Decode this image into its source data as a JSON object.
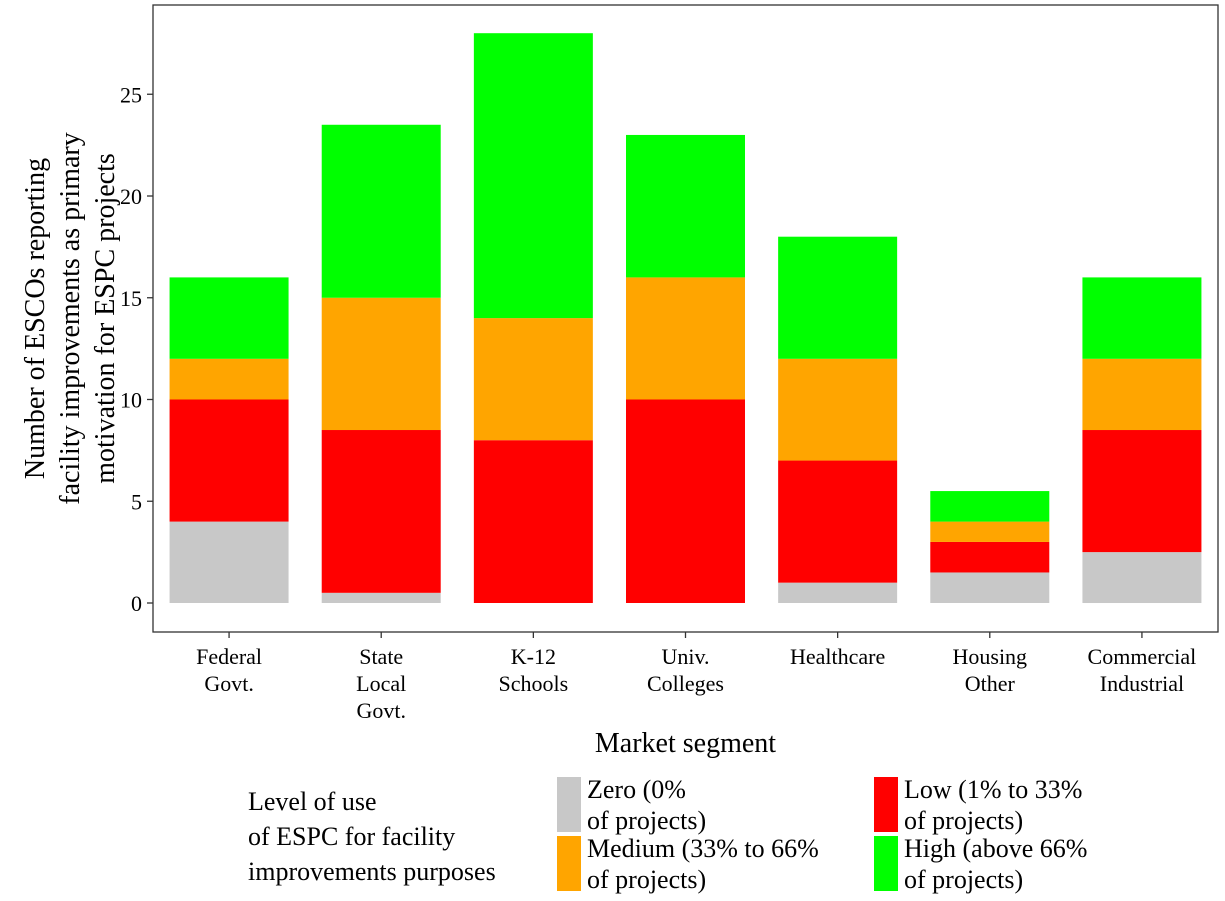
{
  "chart_data": {
    "type": "bar",
    "stacked": true,
    "xlabel": "Market segment",
    "ylabel": [
      "Number of ESCOs reporting",
      "facility improvements as primary",
      "motivation for ESPC projects"
    ],
    "ylim": [
      0,
      29
    ],
    "yticks": [
      "0",
      "5",
      "10",
      "15",
      "20",
      "25"
    ],
    "grid": false,
    "categories": [
      [
        "Federal",
        "Govt."
      ],
      [
        "State",
        "Local",
        "Govt."
      ],
      [
        "K-12",
        "Schools"
      ],
      [
        "Univ.",
        "Colleges"
      ],
      [
        "Healthcare"
      ],
      [
        "Housing",
        "Other"
      ],
      [
        "Commercial",
        "Industrial"
      ]
    ],
    "series": [
      {
        "name": [
          "Zero (0%",
          "of projects)"
        ],
        "color": "#c8c8c8",
        "values": [
          4,
          0.5,
          0,
          0,
          1,
          1.5,
          2.5
        ]
      },
      {
        "name": [
          "Low (1% to 33%",
          "of projects)"
        ],
        "color": "#ff0000",
        "values": [
          6,
          8,
          8,
          10,
          6,
          1.5,
          6
        ]
      },
      {
        "name": [
          "Medium (33% to 66%",
          "of projects)"
        ],
        "color": "#ffa500",
        "values": [
          2,
          6.5,
          6,
          6,
          5,
          1,
          3.5
        ]
      },
      {
        "name": [
          "High (above 66%",
          "of projects)"
        ],
        "color": "#00ff00",
        "values": [
          4,
          8.5,
          14,
          7,
          6,
          1.5,
          4
        ]
      }
    ],
    "legend": {
      "title": [
        "Level of use",
        "of ESPC for facility",
        "improvements purposes"
      ],
      "position": "bottom"
    }
  }
}
